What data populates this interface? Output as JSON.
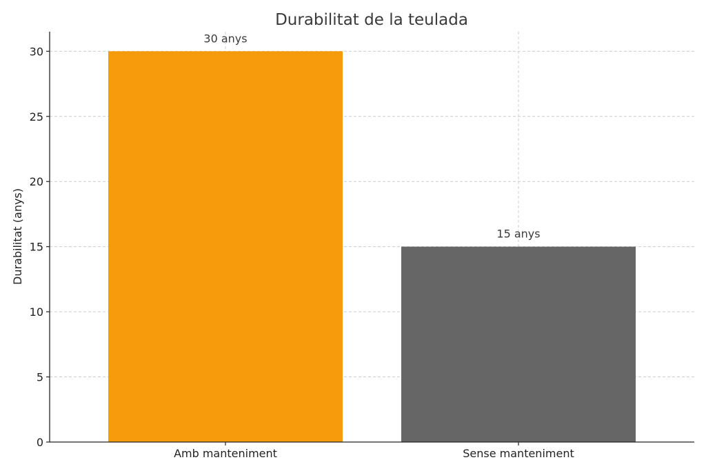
{
  "chart_data": {
    "type": "bar",
    "title": "Durabilitat de la teulada",
    "xlabel": "",
    "ylabel": "Durabilitat (anys)",
    "categories": [
      "Amb manteniment",
      "Sense manteniment"
    ],
    "values": [
      30,
      15
    ],
    "data_labels": [
      "30 anys",
      "15 anys"
    ],
    "colors": [
      "#f79a0b",
      "#666666"
    ],
    "ylim": [
      0,
      31.5
    ],
    "yticks": [
      0,
      5,
      10,
      15,
      20,
      25,
      30
    ],
    "grid": true
  }
}
